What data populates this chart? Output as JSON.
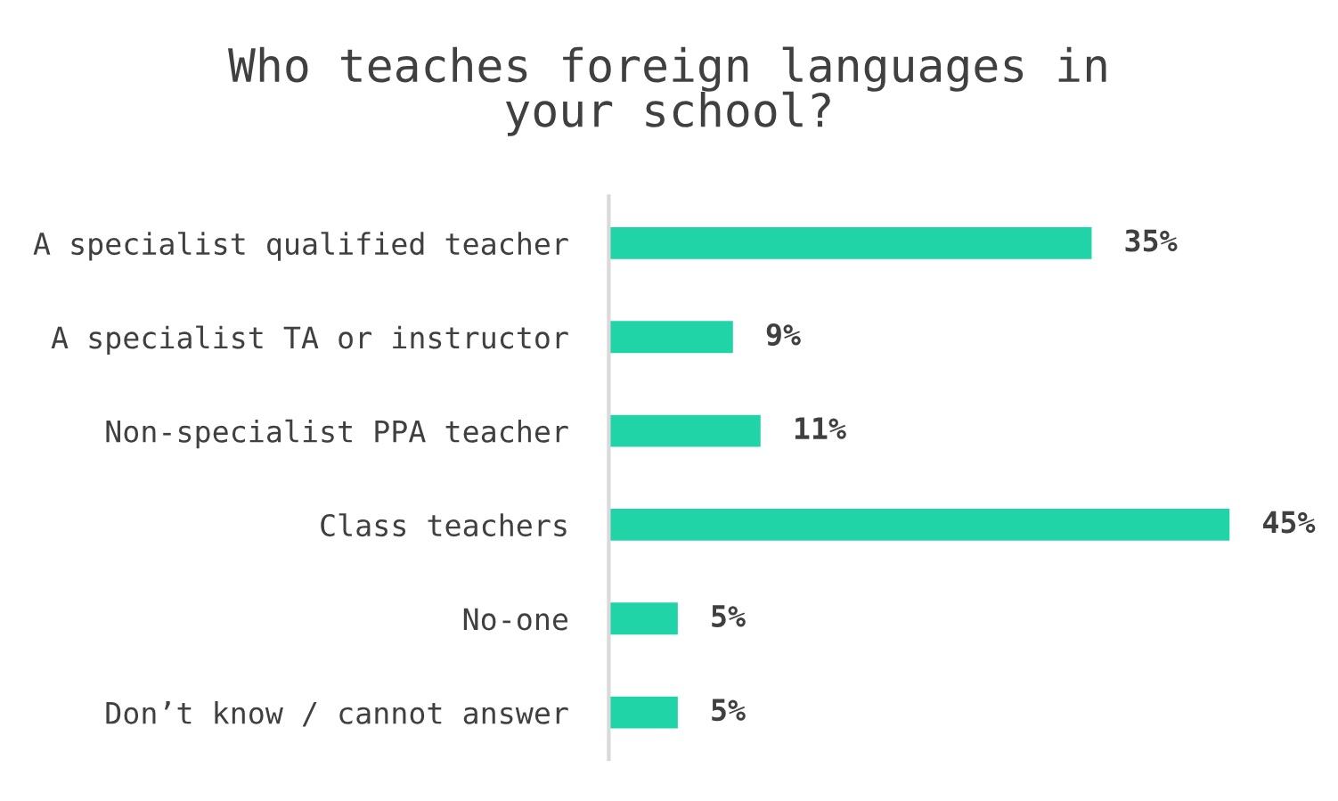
{
  "chart_data": {
    "type": "bar",
    "orientation": "horizontal",
    "title": "Who teaches foreign languages in\nyour school?",
    "categories": [
      "A specialist qualified teacher",
      "A specialist TA or instructor",
      "Non-specialist PPA teacher",
      "Class teachers",
      "No-one",
      "Don’t know / cannot answer"
    ],
    "values": [
      35,
      9,
      11,
      45,
      5,
      5
    ],
    "value_labels": [
      "35%",
      "9%",
      "11%",
      "45%",
      "5%",
      "5%"
    ],
    "color": "#20d4a8",
    "grid": false,
    "legend": false
  }
}
